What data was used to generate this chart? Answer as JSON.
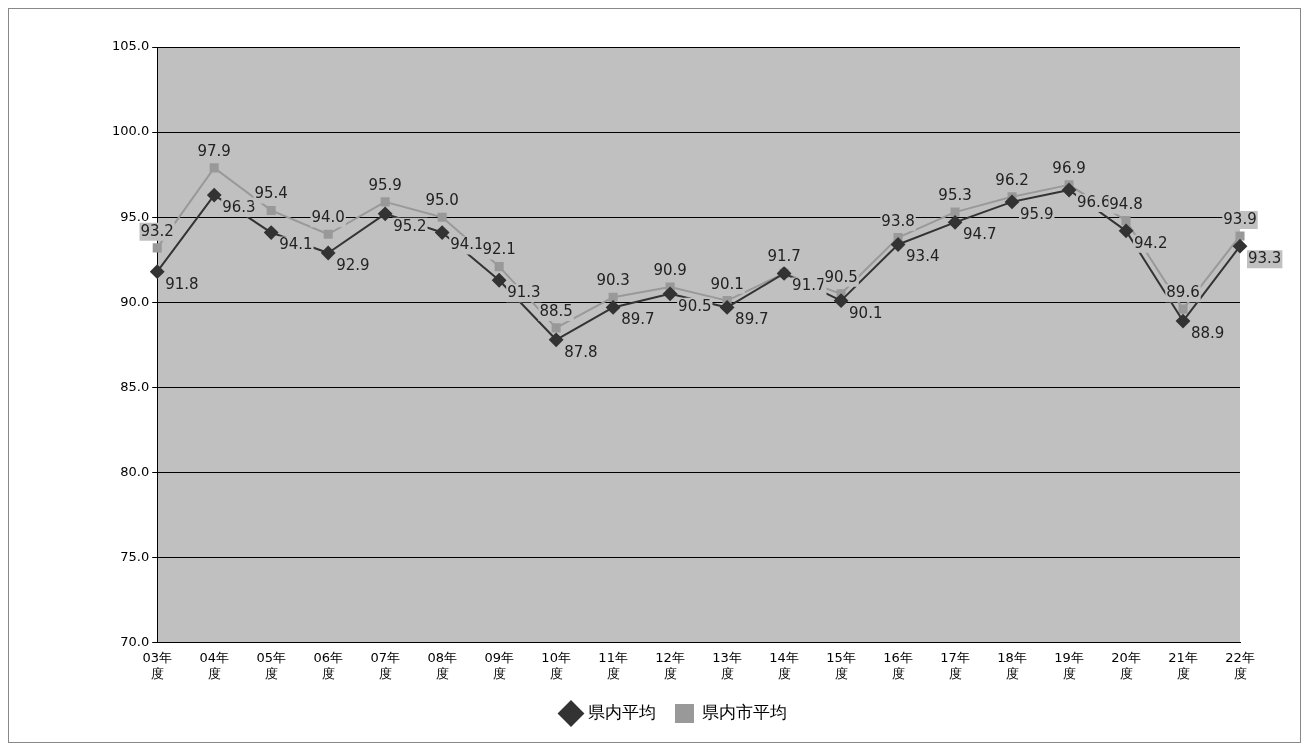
{
  "chart_data": {
    "type": "line",
    "categories": [
      "03年度",
      "04年度",
      "05年度",
      "06年度",
      "07年度",
      "08年度",
      "09年度",
      "10年度",
      "11年度",
      "12年度",
      "13年度",
      "14年度",
      "15年度",
      "16年度",
      "17年度",
      "18年度",
      "19年度",
      "20年度",
      "21年度",
      "22年度"
    ],
    "series": [
      {
        "name": "県内平均",
        "color": "#333333",
        "marker": "diamond",
        "values": [
          91.8,
          96.3,
          94.1,
          92.9,
          95.2,
          94.1,
          91.3,
          87.8,
          89.7,
          90.5,
          89.7,
          91.7,
          90.1,
          93.4,
          94.7,
          95.9,
          96.6,
          94.2,
          88.9,
          93.3
        ],
        "value_labels": [
          "91.8",
          "96.3",
          "94.1",
          "92.9",
          "95.2",
          "94.1",
          "91.3",
          "87.8",
          "89.7",
          "90.5",
          "89.7",
          "91.7",
          "90.1",
          "93.4",
          "94.7",
          "95.9",
          "96.6",
          "94.2",
          "88.9",
          "93.3"
        ]
      },
      {
        "name": "県内市平均",
        "color": "#999999",
        "marker": "square",
        "values": [
          93.2,
          97.9,
          95.4,
          94.0,
          95.9,
          95.0,
          92.1,
          88.5,
          90.3,
          90.9,
          90.1,
          91.7,
          90.5,
          93.8,
          95.3,
          96.2,
          96.9,
          94.8,
          89.6,
          93.9
        ],
        "value_labels": [
          "93.2",
          "97.9",
          "95.4",
          "94.0",
          "95.9",
          "95.0",
          "92.1",
          "88.5",
          "90.3",
          "90.9",
          "90.1",
          "91.7",
          "90.5",
          "93.8",
          "95.3",
          "96.2",
          "96.9",
          "94.8",
          "89.6",
          "93.9"
        ]
      }
    ],
    "ylim": [
      70,
      105
    ],
    "yticks": [
      {
        "value": 70,
        "label": "70.0"
      },
      {
        "value": 75,
        "label": "75.0"
      },
      {
        "value": 80,
        "label": "80.0"
      },
      {
        "value": 85,
        "label": "85.0"
      },
      {
        "value": 90,
        "label": "90.0"
      },
      {
        "value": 95,
        "label": "95.0"
      },
      {
        "value": 100,
        "label": "100.0"
      },
      {
        "value": 105,
        "label": "105.0"
      }
    ],
    "grid": "y",
    "legend": "bottom",
    "line_style": "solid"
  }
}
